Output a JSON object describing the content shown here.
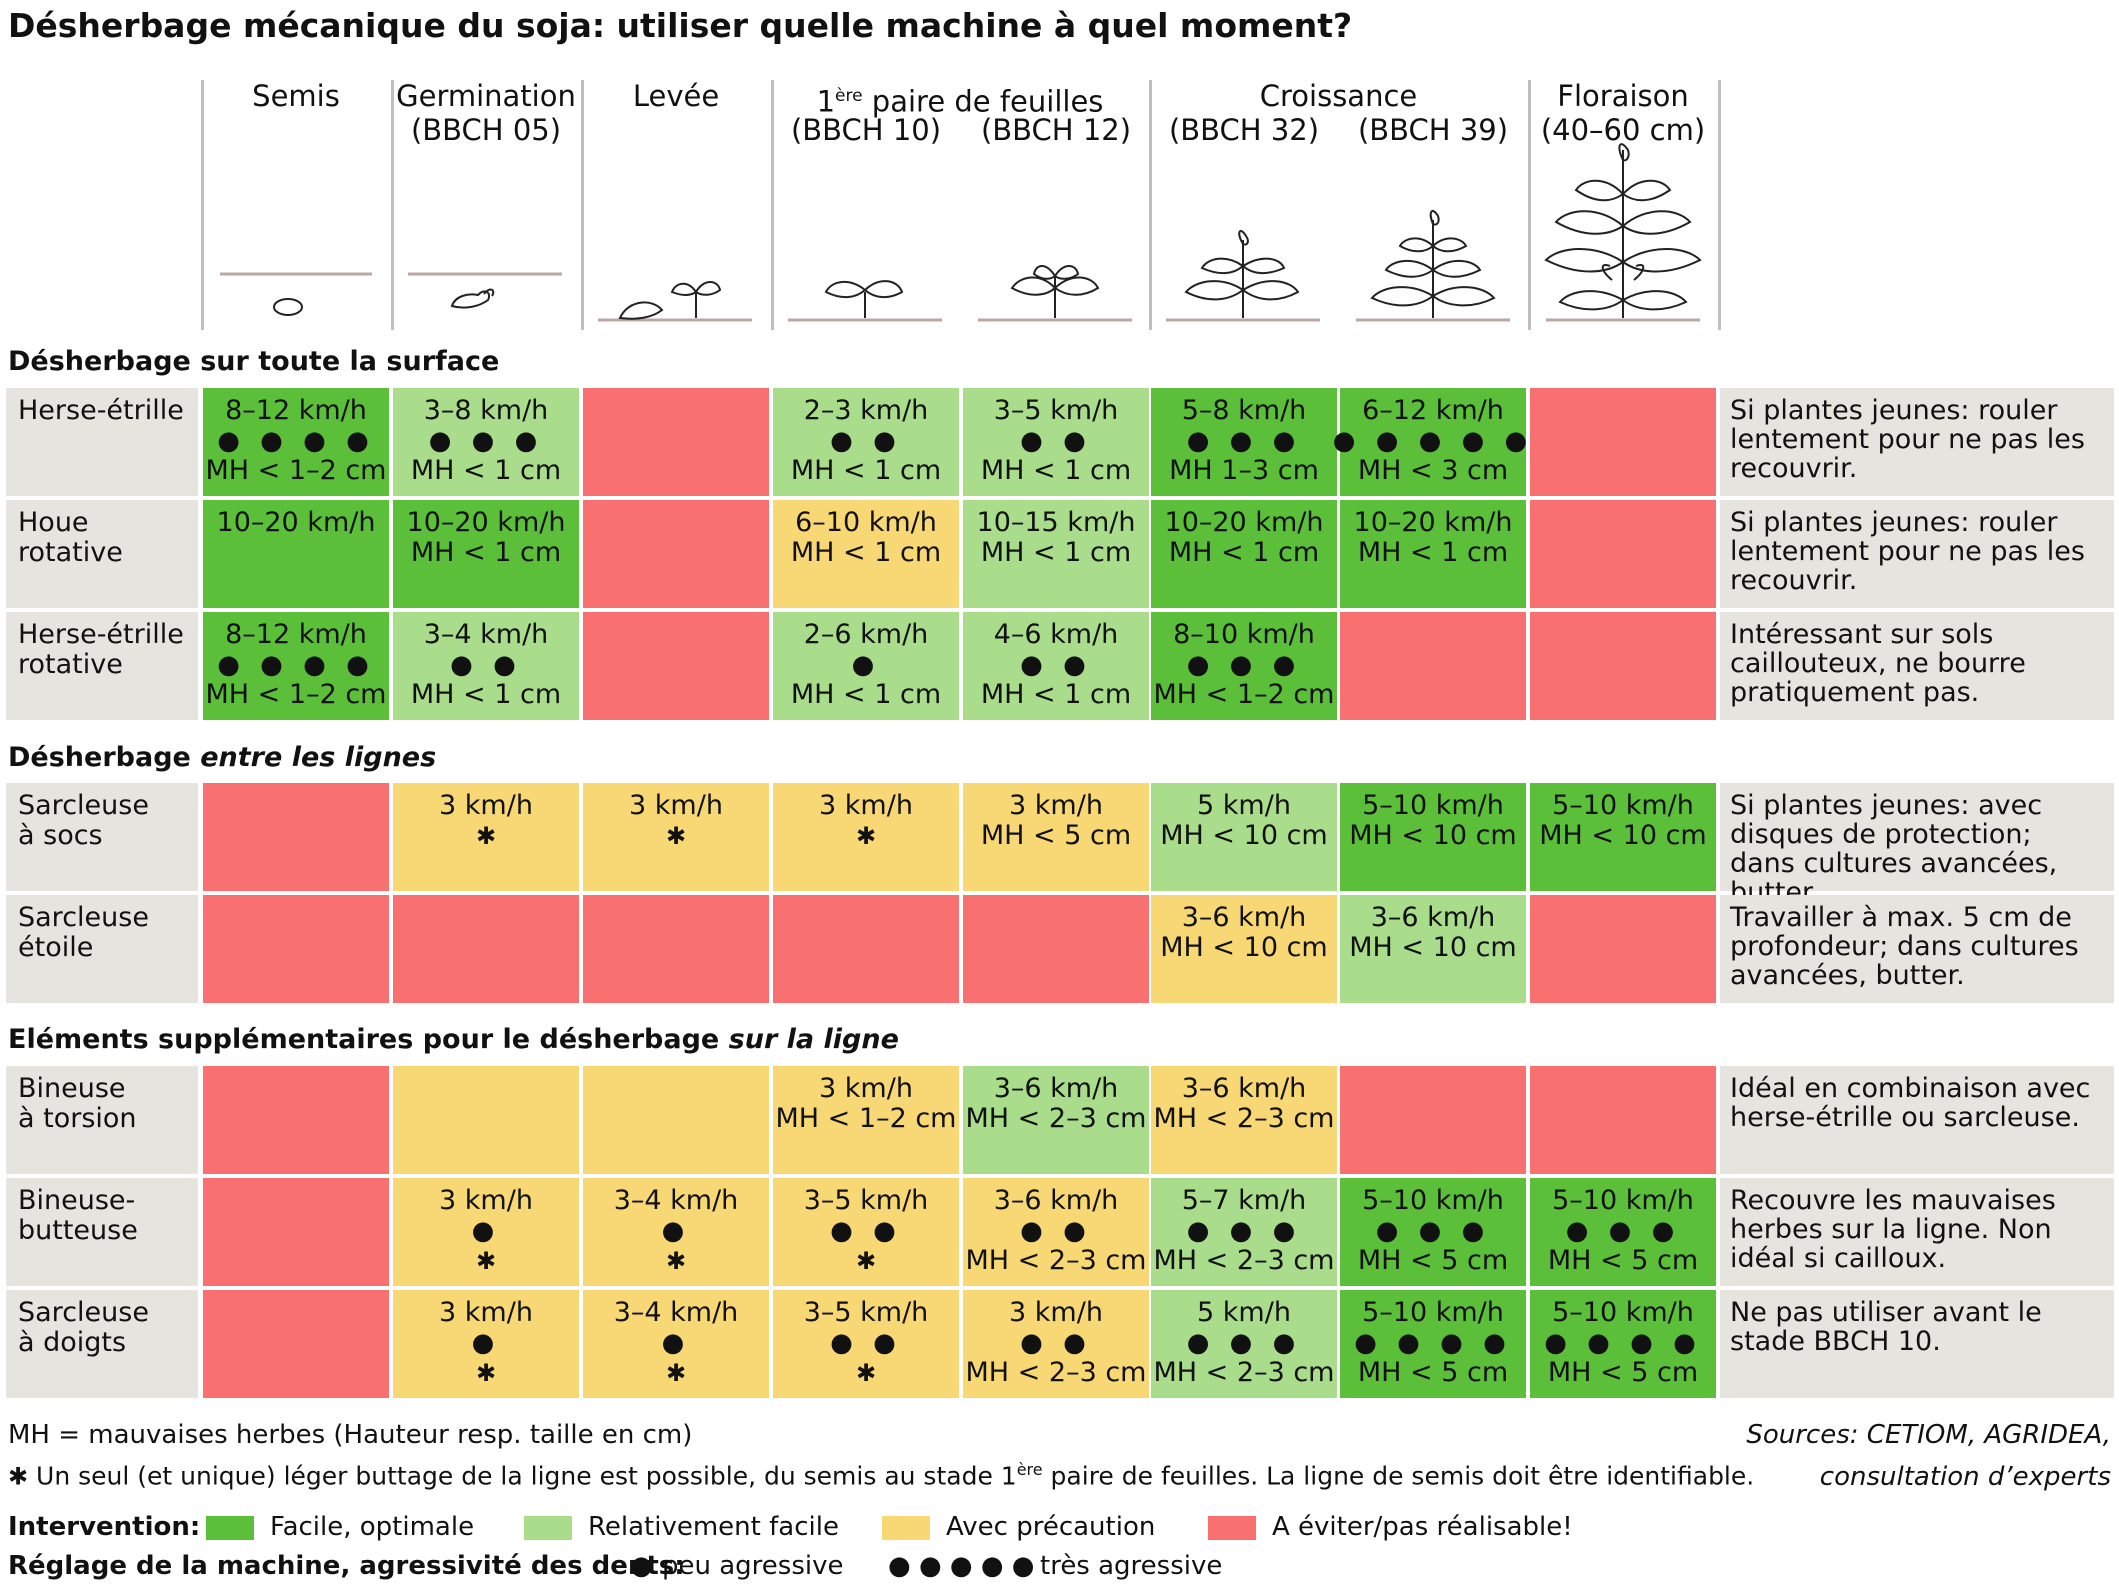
{
  "title": "Désherbage mécanique du soja: utiliser quelle machine à quel moment?",
  "colors": {
    "facile": "#5cbf3a",
    "relativement": "#a9dd8c",
    "precaution": "#f8d875",
    "eviter": "#f97070"
  },
  "stages": {
    "semis": "Semis",
    "germination": "Germination",
    "germination_code": "(BBCH 05)",
    "levee": "Levée",
    "paire_a": "1",
    "paire_sup": "ère",
    "paire_b": " paire de feuilles",
    "bbch10": "(BBCH 10)",
    "bbch12": "(BBCH 12)",
    "croissance": "Croissance",
    "bbch32": "(BBCH 32)",
    "bbch39": "(BBCH 39)",
    "floraison": "Floraison",
    "floraison_size": "(40–60 cm)"
  },
  "sections": {
    "s1": "Désherbage sur toute la surface",
    "s2_a": "Désherbage ",
    "s2_b": "entre les lignes",
    "s3_a": "Eléments supplémentaires pour le désherbage ",
    "s3_b": "sur la ligne"
  },
  "rows": [
    {
      "label": [
        "Herse-étrille"
      ],
      "note": "Si plantes jeunes: rouler lentement pour ne pas les recouvrir.",
      "cells": [
        {
          "c": "f",
          "l": [
            "8–12 km/h",
            "● ● ● ●",
            "MH < 1–2 cm"
          ]
        },
        {
          "c": "r",
          "l": [
            "3–8 km/h",
            "● ● ●",
            "MH < 1 cm"
          ]
        },
        {
          "c": "e",
          "l": []
        },
        {
          "c": "r",
          "l": [
            "2–3 km/h",
            "● ●",
            "MH < 1 cm"
          ]
        },
        {
          "c": "r",
          "l": [
            "3–5 km/h",
            "● ●",
            "MH < 1 cm"
          ]
        },
        {
          "c": "f",
          "l": [
            "5–8 km/h",
            "● ● ●",
            "MH 1–3 cm"
          ]
        },
        {
          "c": "f",
          "l": [
            "6–12 km/h",
            "● ● ● ● ●",
            "MH < 3 cm"
          ]
        },
        {
          "c": "e",
          "l": []
        }
      ]
    },
    {
      "label": [
        "Houe rotative"
      ],
      "note": "Si plantes jeunes: rouler lentement pour ne pas les recouvrir.",
      "cells": [
        {
          "c": "f",
          "l": [
            "10–20 km/h"
          ]
        },
        {
          "c": "f",
          "l": [
            "10–20 km/h",
            "MH < 1 cm"
          ]
        },
        {
          "c": "e",
          "l": []
        },
        {
          "c": "p",
          "l": [
            "6–10 km/h",
            "MH < 1 cm"
          ]
        },
        {
          "c": "r",
          "l": [
            "10–15 km/h",
            "MH < 1 cm"
          ]
        },
        {
          "c": "f",
          "l": [
            "10–20 km/h",
            "MH < 1 cm"
          ]
        },
        {
          "c": "f",
          "l": [
            "10–20 km/h",
            "MH < 1 cm"
          ]
        },
        {
          "c": "e",
          "l": []
        }
      ]
    },
    {
      "label": [
        "Herse-étrille",
        "rotative"
      ],
      "note": "Intéressant sur sols caillouteux, ne bourre pratiquement pas.",
      "cells": [
        {
          "c": "f",
          "l": [
            "8–12 km/h",
            "● ● ● ●",
            "MH < 1–2 cm"
          ]
        },
        {
          "c": "r",
          "l": [
            "3–4 km/h",
            "● ●",
            "MH < 1 cm"
          ]
        },
        {
          "c": "e",
          "l": []
        },
        {
          "c": "r",
          "l": [
            "2–6 km/h",
            "●",
            "MH < 1 cm"
          ]
        },
        {
          "c": "r",
          "l": [
            "4–6 km/h",
            "● ●",
            "MH < 1 cm"
          ]
        },
        {
          "c": "f",
          "l": [
            "8–10 km/h",
            "● ● ●",
            "MH < 1–2 cm"
          ]
        },
        {
          "c": "e",
          "l": []
        },
        {
          "c": "e",
          "l": []
        }
      ]
    },
    {
      "label": [
        "Sarcleuse",
        "à socs"
      ],
      "note": "Si plantes jeunes: avec disques de protection; dans cultures avancées, butter.",
      "cells": [
        {
          "c": "e",
          "l": []
        },
        {
          "c": "p",
          "l": [
            "3 km/h",
            "✱"
          ]
        },
        {
          "c": "p",
          "l": [
            "3 km/h",
            "✱"
          ]
        },
        {
          "c": "p",
          "l": [
            "3 km/h",
            "✱"
          ]
        },
        {
          "c": "p",
          "l": [
            "3 km/h",
            "MH < 5 cm"
          ]
        },
        {
          "c": "r",
          "l": [
            "5 km/h",
            "MH < 10 cm"
          ]
        },
        {
          "c": "f",
          "l": [
            "5–10 km/h",
            "MH < 10 cm"
          ]
        },
        {
          "c": "f",
          "l": [
            "5–10 km/h",
            "MH < 10 cm"
          ]
        }
      ]
    },
    {
      "label": [
        "Sarcleuse",
        "étoile"
      ],
      "note": "Travailler à max. 5 cm de profondeur; dans cultures avancées, butter.",
      "cells": [
        {
          "c": "e",
          "l": []
        },
        {
          "c": "e",
          "l": []
        },
        {
          "c": "e",
          "l": []
        },
        {
          "c": "e",
          "l": []
        },
        {
          "c": "e",
          "l": []
        },
        {
          "c": "p",
          "l": [
            "3–6 km/h",
            "MH < 10 cm"
          ]
        },
        {
          "c": "r",
          "l": [
            "3–6 km/h",
            "MH < 10 cm"
          ]
        },
        {
          "c": "e",
          "l": []
        }
      ]
    },
    {
      "label": [
        "Bineuse",
        "à torsion"
      ],
      "note": "Idéal en combinaison avec herse-étrille ou sarcleuse.",
      "cells": [
        {
          "c": "e",
          "l": []
        },
        {
          "c": "p",
          "l": []
        },
        {
          "c": "p",
          "l": []
        },
        {
          "c": "p",
          "l": [
            "3 km/h",
            "MH < 1–2 cm"
          ]
        },
        {
          "c": "r",
          "l": [
            "3–6 km/h",
            "MH < 2–3 cm"
          ]
        },
        {
          "c": "p",
          "l": [
            "3–6 km/h",
            "MH < 2–3 cm"
          ]
        },
        {
          "c": "e",
          "l": []
        },
        {
          "c": "e",
          "l": []
        }
      ]
    },
    {
      "label": [
        "Bineuse-",
        "butteuse"
      ],
      "note": "Recouvre les mauvaises herbes sur la ligne. Non idéal si cailloux.",
      "cells": [
        {
          "c": "e",
          "l": []
        },
        {
          "c": "p",
          "l": [
            "3 km/h",
            "●",
            "✱"
          ]
        },
        {
          "c": "p",
          "l": [
            "3–4 km/h",
            "●",
            "✱"
          ]
        },
        {
          "c": "p",
          "l": [
            "3–5 km/h",
            "● ●",
            "✱"
          ]
        },
        {
          "c": "p",
          "l": [
            "3–6 km/h",
            "● ●",
            "MH < 2–3 cm"
          ]
        },
        {
          "c": "r",
          "l": [
            "5–7 km/h",
            "● ● ●",
            "MH < 2–3 cm"
          ]
        },
        {
          "c": "f",
          "l": [
            "5–10 km/h",
            "● ● ●",
            "MH < 5 cm"
          ]
        },
        {
          "c": "f",
          "l": [
            "5–10 km/h",
            "● ● ●",
            "MH < 5 cm"
          ]
        }
      ]
    },
    {
      "label": [
        "Sarcleuse",
        "à doigts"
      ],
      "note": "Ne pas utiliser avant le stade BBCH 10.",
      "cells": [
        {
          "c": "e",
          "l": []
        },
        {
          "c": "p",
          "l": [
            "3 km/h",
            "●",
            "✱"
          ]
        },
        {
          "c": "p",
          "l": [
            "3–4 km/h",
            "●",
            "✱"
          ]
        },
        {
          "c": "p",
          "l": [
            "3–5 km/h",
            "● ●",
            "✱"
          ]
        },
        {
          "c": "p",
          "l": [
            "3 km/h",
            "● ●",
            "MH < 2–3 cm"
          ]
        },
        {
          "c": "r",
          "l": [
            "5 km/h",
            "● ● ●",
            "MH < 2–3 cm"
          ]
        },
        {
          "c": "f",
          "l": [
            "5–10 km/h",
            "● ● ● ●",
            "MH < 5 cm"
          ]
        },
        {
          "c": "f",
          "l": [
            "5–10 km/h",
            "● ● ● ●",
            "MH < 5 cm"
          ]
        }
      ]
    }
  ],
  "footnotes": {
    "mh": "MH = mauvaises herbes (Hauteur resp. taille en cm)",
    "star_symbol": "✱",
    "star_a": " Un seul (et unique) léger buttage de la ligne est possible, du semis au stade ",
    "star_num": "1",
    "star_sup": "ère",
    "star_b": " paire de feuilles. La ligne de semis doit être identifiable.",
    "sources_1": "Sources: CETIOM, AGRIDEA,",
    "sources_2": "consultation d’experts"
  },
  "legend": {
    "intervention_label": "Intervention:",
    "facile": "Facile, optimale",
    "relativement": "Relativement facile",
    "precaution": "Avec précaution",
    "eviter": "A éviter/pas réalisable!",
    "reglage_label": "Réglage de la machine, agressivité des dents:",
    "dot1": "●",
    "peu": "peu agressive",
    "dot5": "● ● ● ● ●",
    "tres": "très agressive"
  }
}
